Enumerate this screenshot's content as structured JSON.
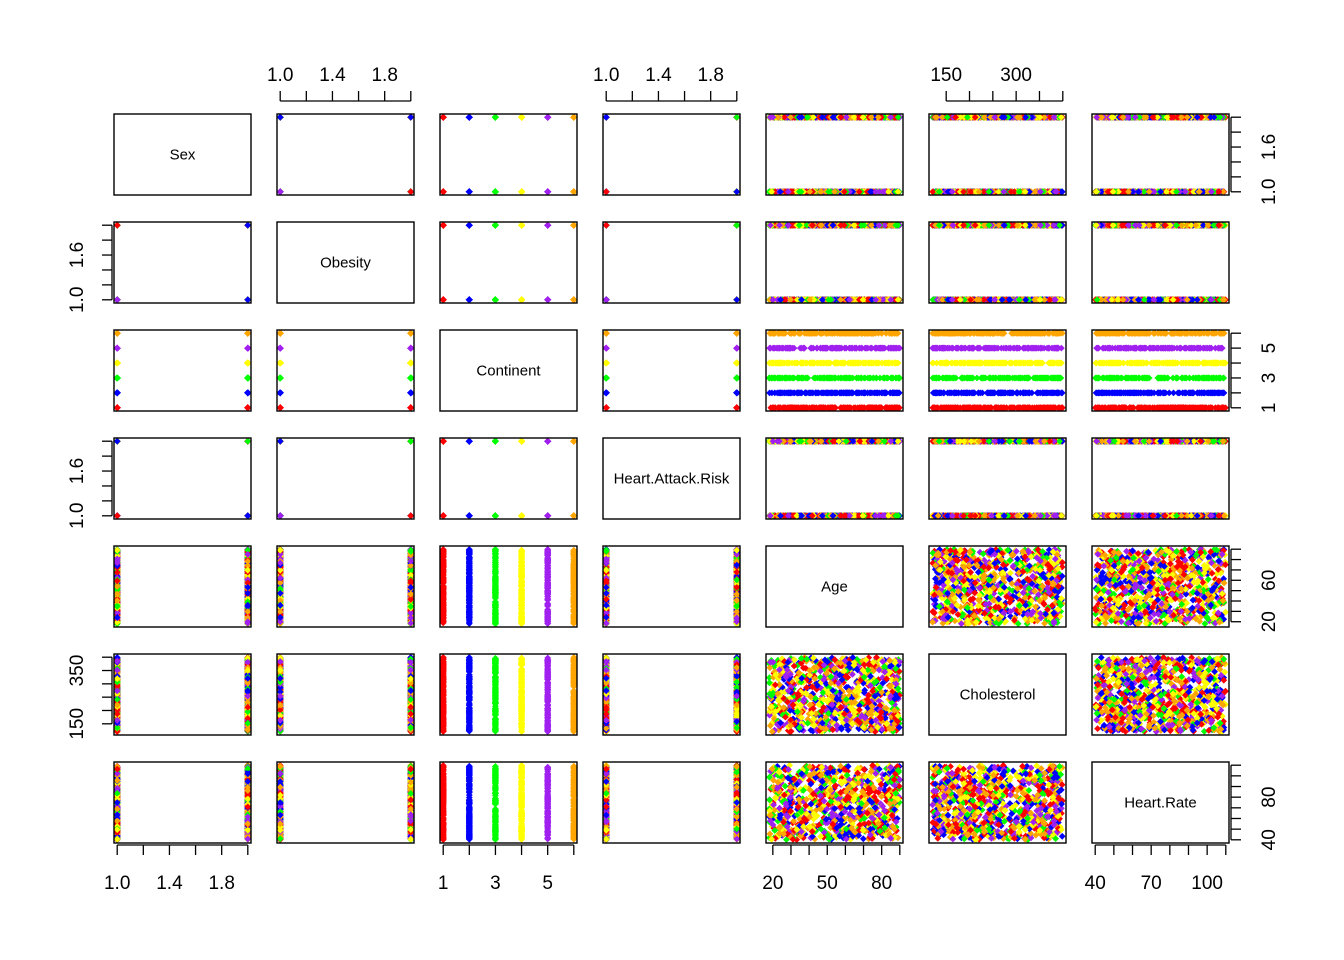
{
  "chart_data": {
    "type": "scatter",
    "kind": "scatterplot-matrix",
    "variables": [
      "Sex",
      "Obesity",
      "Continent",
      "Heart.Attack.Risk",
      "Age",
      "Cholesterol",
      "Heart.Rate"
    ],
    "ranges": {
      "Sex": [
        1,
        2
      ],
      "Obesity": [
        1,
        2
      ],
      "Continent": [
        1,
        6
      ],
      "Heart.Attack.Risk": [
        1,
        2
      ],
      "Age": [
        18,
        90
      ],
      "Cholesterol": [
        120,
        400
      ],
      "Heart.Rate": [
        40,
        110
      ]
    },
    "discrete_levels": {
      "Sex": [
        1,
        2
      ],
      "Obesity": [
        1,
        2
      ],
      "Continent": [
        1,
        2,
        3,
        4,
        5,
        6
      ],
      "Heart.Attack.Risk": [
        1,
        2
      ]
    },
    "point_colors_by_continent": [
      "#ff0000",
      "#0000ff",
      "#00ff00",
      "#ffff00",
      "#a020f0",
      "#ffa500"
    ],
    "axes": {
      "top": [
        {
          "panel_col": 1,
          "ticks": [
            1.0,
            1.2,
            1.4,
            1.6,
            1.8,
            2.0
          ],
          "labels": [
            "1.0",
            "1.4",
            "1.8"
          ]
        },
        {
          "panel_col": 3,
          "ticks": [
            1.0,
            1.2,
            1.4,
            1.6,
            1.8,
            2.0
          ],
          "labels": [
            "1.0",
            "1.4",
            "1.8"
          ]
        },
        {
          "panel_col": 5,
          "ticks": [
            150,
            200,
            250,
            300,
            350,
            400
          ],
          "labels": [
            "150",
            "300"
          ]
        }
      ],
      "bottom": [
        {
          "panel_col": 0,
          "ticks": [
            1.0,
            1.2,
            1.4,
            1.6,
            1.8,
            2.0
          ],
          "labels": [
            "1.0",
            "1.4",
            "1.8"
          ]
        },
        {
          "panel_col": 2,
          "ticks": [
            1,
            2,
            3,
            4,
            5,
            6
          ],
          "labels": [
            "1",
            "3",
            "5"
          ]
        },
        {
          "panel_col": 4,
          "ticks": [
            20,
            30,
            40,
            50,
            60,
            70,
            80,
            90
          ],
          "labels": [
            "20",
            "50",
            "80"
          ]
        },
        {
          "panel_col": 6,
          "ticks": [
            40,
            50,
            60,
            70,
            80,
            90,
            100,
            110
          ],
          "labels": [
            "40",
            "70",
            "100"
          ]
        }
      ],
      "left": [
        {
          "panel_row": 1,
          "ticks": [
            1.0,
            1.2,
            1.4,
            1.6,
            1.8,
            2.0
          ],
          "labels": [
            "1.0",
            "1.6"
          ]
        },
        {
          "panel_row": 3,
          "ticks": [
            1.0,
            1.2,
            1.4,
            1.6,
            1.8,
            2.0
          ],
          "labels": [
            "1.0",
            "1.6"
          ]
        },
        {
          "panel_row": 5,
          "ticks": [
            150,
            200,
            250,
            300,
            350,
            400
          ],
          "labels": [
            "150",
            "350"
          ]
        }
      ],
      "right": [
        {
          "panel_row": 0,
          "ticks": [
            1.0,
            1.2,
            1.4,
            1.6,
            1.8,
            2.0
          ],
          "labels": [
            "1.0",
            "1.6"
          ]
        },
        {
          "panel_row": 2,
          "ticks": [
            1,
            2,
            3,
            4,
            5,
            6
          ],
          "labels": [
            "1",
            "3",
            "5"
          ]
        },
        {
          "panel_row": 4,
          "ticks": [
            20,
            30,
            40,
            50,
            60,
            70,
            80,
            90
          ],
          "labels": [
            "20",
            "60"
          ]
        },
        {
          "panel_row": 6,
          "ticks": [
            40,
            50,
            60,
            70,
            80,
            90,
            100,
            110
          ],
          "labels": [
            "40",
            "80"
          ]
        }
      ]
    }
  }
}
